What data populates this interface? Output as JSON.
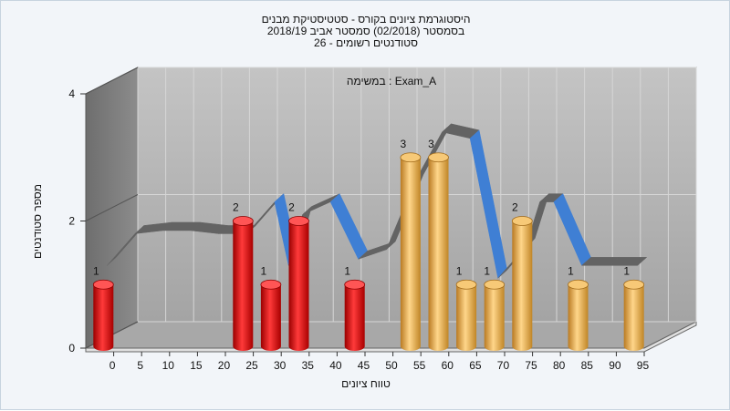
{
  "header": {
    "title_line1": "היסטוגרמת ציונים בקורס - סטטיסטיקת מבנים",
    "title_line2": "בסמסטר  (02/2018)  סמסטר אביב 2018/19",
    "title_line3": "סטודנטים רשומים - 26"
  },
  "chart_data": {
    "type": "bar",
    "annotation": "במשימה : Exam_A",
    "xlabel": "טווח ציונים",
    "ylabel": "מספר סטודנטים",
    "x_ticks": [
      "0",
      "5",
      "10",
      "15",
      "20",
      "25",
      "30",
      "35",
      "40",
      "45",
      "50",
      "55",
      "60",
      "65",
      "70",
      "75",
      "80",
      "85",
      "90",
      "95"
    ],
    "y_ticks": [
      0,
      2,
      4
    ],
    "ylim": [
      0,
      4
    ],
    "grid": true,
    "bars": [
      {
        "x": 0,
        "value": 1,
        "label": "1",
        "color": "#d80f12"
      },
      {
        "x": 25,
        "value": 2,
        "label": "2",
        "color": "#d80f12"
      },
      {
        "x": 30,
        "value": 1,
        "label": "1",
        "color": "#d80f12"
      },
      {
        "x": 35,
        "value": 2,
        "label": "2",
        "color": "#d80f12"
      },
      {
        "x": 45,
        "value": 1,
        "label": "1",
        "color": "#d80f12"
      },
      {
        "x": 55,
        "value": 3,
        "label": "3",
        "color": "#e8a94a"
      },
      {
        "x": 60,
        "value": 3,
        "label": "3",
        "color": "#e8a94a"
      },
      {
        "x": 65,
        "value": 1,
        "label": "1",
        "color": "#e8a94a"
      },
      {
        "x": 70,
        "value": 1,
        "label": "1",
        "color": "#e8a94a"
      },
      {
        "x": 75,
        "value": 2,
        "label": "2",
        "color": "#e8a94a"
      },
      {
        "x": 85,
        "value": 1,
        "label": "1",
        "color": "#e8a94a"
      },
      {
        "x": 95,
        "value": 1,
        "label": "1",
        "color": "#e8a94a"
      }
    ],
    "curve": [
      [
        0,
        1.3
      ],
      [
        5,
        1.8
      ],
      [
        10,
        1.85
      ],
      [
        15,
        1.85
      ],
      [
        20,
        1.8
      ],
      [
        25,
        1.8
      ],
      [
        30,
        2.3
      ],
      [
        32.5,
        1.3
      ],
      [
        35,
        2.1
      ],
      [
        40,
        2.3
      ],
      [
        45,
        1.4
      ],
      [
        50,
        1.55
      ],
      [
        55,
        2.6
      ],
      [
        60,
        3.4
      ],
      [
        65,
        3.3
      ],
      [
        70,
        1.1
      ],
      [
        75,
        1.6
      ],
      [
        77.5,
        2.3
      ],
      [
        80,
        2.3
      ],
      [
        85,
        1.3
      ],
      [
        90,
        1.3
      ],
      [
        95,
        1.3
      ]
    ]
  }
}
